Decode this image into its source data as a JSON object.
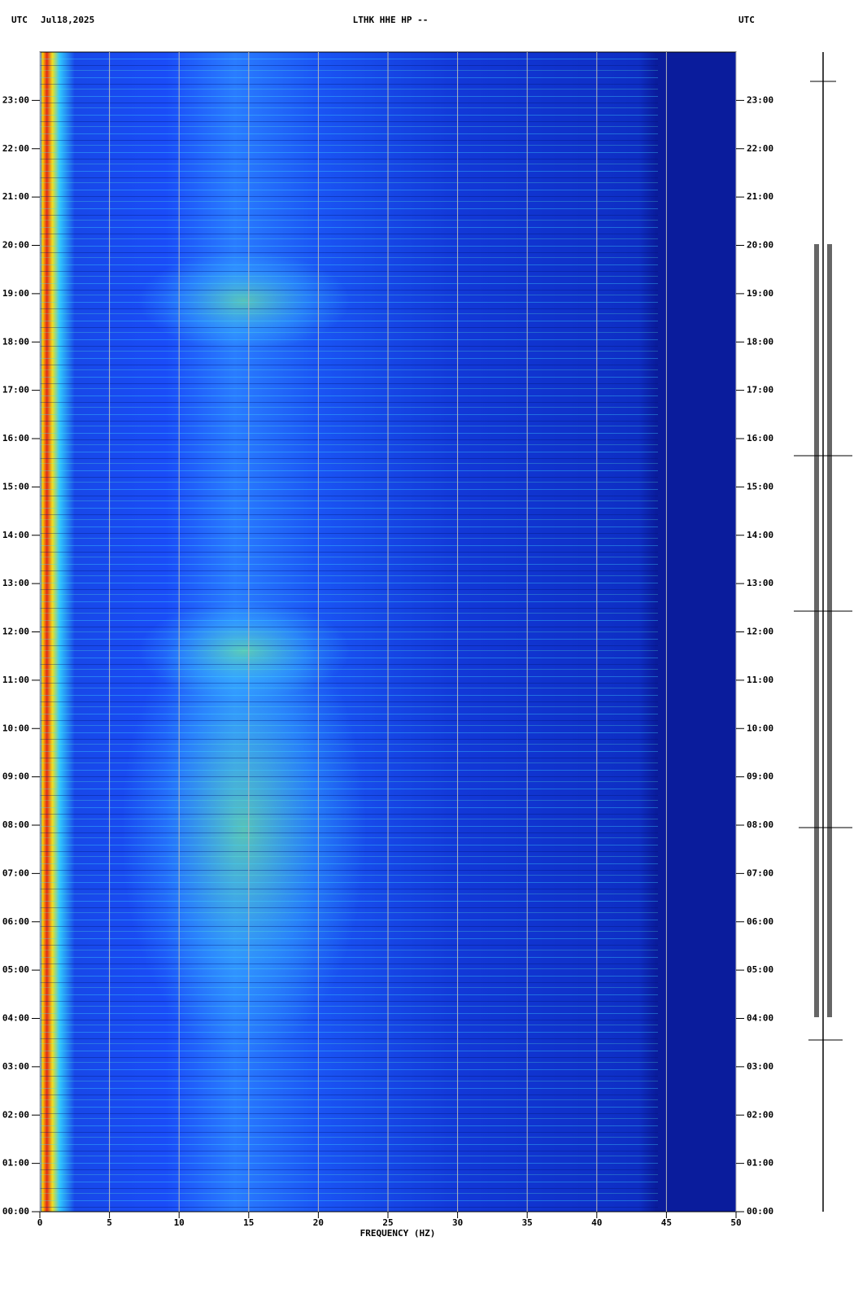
{
  "chart_data": {
    "type": "spectrogram",
    "left_label": "UTC",
    "date": "Jul18,2025",
    "title": "LTHK HHE HP --",
    "right_label": "UTC",
    "xlabel": "FREQUENCY (HZ)",
    "xlim": [
      0,
      50
    ],
    "xticks": [
      0,
      5,
      10,
      15,
      20,
      25,
      30,
      35,
      40,
      45,
      50
    ],
    "ylim": [
      0,
      24
    ],
    "yticks": [
      {
        "value": 0,
        "label": "00:00"
      },
      {
        "value": 1,
        "label": "01:00"
      },
      {
        "value": 2,
        "label": "02:00"
      },
      {
        "value": 3,
        "label": "03:00"
      },
      {
        "value": 4,
        "label": "04:00"
      },
      {
        "value": 5,
        "label": "05:00"
      },
      {
        "value": 6,
        "label": "06:00"
      },
      {
        "value": 7,
        "label": "07:00"
      },
      {
        "value": 8,
        "label": "08:00"
      },
      {
        "value": 9,
        "label": "09:00"
      },
      {
        "value": 10,
        "label": "10:00"
      },
      {
        "value": 11,
        "label": "11:00"
      },
      {
        "value": 12,
        "label": "12:00"
      },
      {
        "value": 13,
        "label": "13:00"
      },
      {
        "value": 14,
        "label": "14:00"
      },
      {
        "value": 15,
        "label": "15:00"
      },
      {
        "value": 16,
        "label": "16:00"
      },
      {
        "value": 17,
        "label": "17:00"
      },
      {
        "value": 18,
        "label": "18:00"
      },
      {
        "value": 19,
        "label": "19:00"
      },
      {
        "value": 20,
        "label": "20:00"
      },
      {
        "value": 21,
        "label": "21:00"
      },
      {
        "value": 22,
        "label": "22:00"
      },
      {
        "value": 23,
        "label": "23:00"
      }
    ],
    "grid": true
  }
}
